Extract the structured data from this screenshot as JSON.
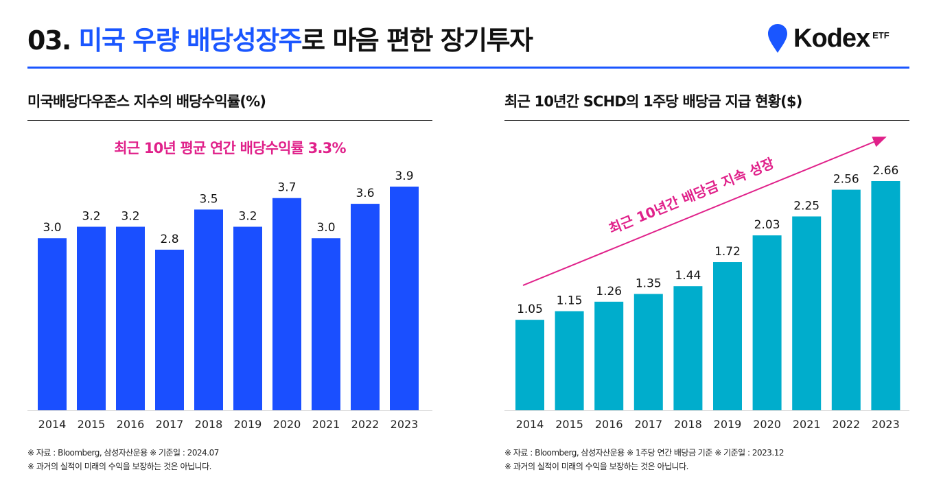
{
  "header": {
    "title_prefix": "03. ",
    "title_highlight": "미국 우량 배당성장주",
    "title_suffix": "로 마음 편한 장기투자",
    "logo_text": "Kodex",
    "logo_sup": "ETF"
  },
  "colors": {
    "accent": "#1a56ff",
    "left_bar": "#1a4fff",
    "right_bar": "#00adcc",
    "highlight": "#e0218a"
  },
  "left": {
    "heading": "미국배당다우존스 지수의 배당수익률(%)",
    "subtitle": "최근 10년 평균 연간 배당수익률 3.3%",
    "note1": "※ 자료 :  Bloomberg, 삼성자산운용 ※ 기준일 : 2024.07",
    "note2": "※ 과거의 실적이 미래의 수익을 보장하는 것은 아닙니다."
  },
  "right": {
    "heading": "최근 10년간 SCHD의 1주당 배당금 지급 현황($)",
    "arrow_label": "최근 10년간 배당금 지속 성장",
    "note1": "※ 자료 : Bloomberg, 삼성자산운용 ※ 1주당 연간 배당금 기준 ※ 기준일 : 2023.12",
    "note2": "※ 과거의 실적이 미래의 수익을 보장하는 것은 아닙니다."
  },
  "chart_data": [
    {
      "type": "bar",
      "title": "미국배당다우존스 지수의 배당수익률(%)",
      "categories": [
        "2014",
        "2015",
        "2016",
        "2017",
        "2018",
        "2019",
        "2020",
        "2021",
        "2022",
        "2023"
      ],
      "values": [
        3.0,
        3.2,
        3.2,
        2.8,
        3.5,
        3.2,
        3.7,
        3.0,
        3.6,
        3.9
      ],
      "labels": [
        "3.0",
        "3.2",
        "3.2",
        "2.8",
        "3.5",
        "3.2",
        "3.7",
        "3.0",
        "3.6",
        "3.9"
      ],
      "ylim": [
        0,
        3.9
      ],
      "grid": false
    },
    {
      "type": "bar",
      "title": "최근 10년간 SCHD의 1주당 배당금 지급 현황($)",
      "categories": [
        "2014",
        "2015",
        "2016",
        "2017",
        "2018",
        "2019",
        "2020",
        "2021",
        "2022",
        "2023"
      ],
      "values": [
        1.05,
        1.15,
        1.26,
        1.35,
        1.44,
        1.72,
        2.03,
        2.25,
        2.56,
        2.66
      ],
      "labels": [
        "1.05",
        "1.15",
        "1.26",
        "1.35",
        "1.44",
        "1.72",
        "2.03",
        "2.25",
        "2.56",
        "2.66"
      ],
      "ylim": [
        0,
        2.66
      ],
      "grid": false
    }
  ]
}
